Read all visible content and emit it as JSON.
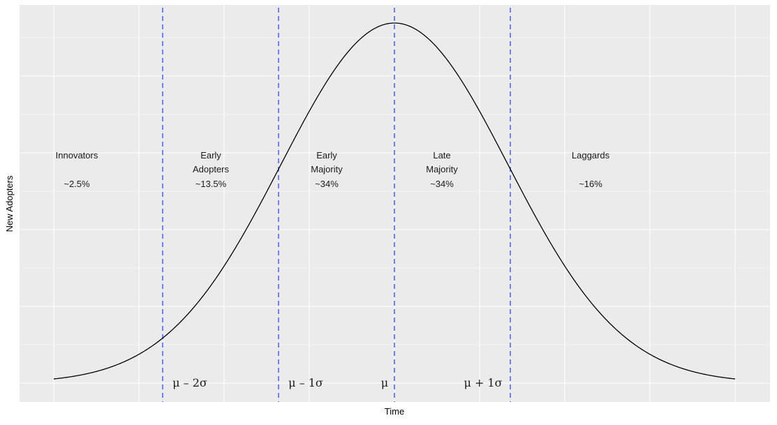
{
  "chart_data": {
    "type": "line",
    "title": "",
    "xlabel": "Time",
    "ylabel": "New Adopters",
    "description": "Diffusion of innovations bell curve (normal distribution) with segments separated by dashed vertical lines at mu-2sigma, mu-1sigma, mu, mu+1sigma",
    "x_range": [
      -3,
      3
    ],
    "grid": true,
    "curve": {
      "distribution": "normal",
      "mean": 0,
      "sd": 1,
      "color": "#000000"
    },
    "vlines": [
      {
        "x": -2,
        "label": "μ – 2σ"
      },
      {
        "x": -1,
        "label": "μ – 1σ"
      },
      {
        "x": 0,
        "label": "μ"
      },
      {
        "x": 1,
        "label": "μ + 1σ"
      }
    ],
    "vline_color": "#4a5cf0",
    "segments": [
      {
        "name": "Innovators",
        "line1": "Innovators",
        "line2": "",
        "share": "~2.5%",
        "percent": 2.5
      },
      {
        "name": "Early Adopters",
        "line1": "Early",
        "line2": "Adopters",
        "share": "~13.5%",
        "percent": 13.5
      },
      {
        "name": "Early Majority",
        "line1": "Early",
        "line2": "Majority",
        "share": "~34%",
        "percent": 34
      },
      {
        "name": "Late Majority",
        "line1": "Late",
        "line2": "Majority",
        "share": "~34%",
        "percent": 34
      },
      {
        "name": "Laggards",
        "line1": "Laggards",
        "line2": "",
        "share": "~16%",
        "percent": 16
      }
    ],
    "panel_background": "#ebebeb",
    "grid_color": "#ffffff"
  }
}
